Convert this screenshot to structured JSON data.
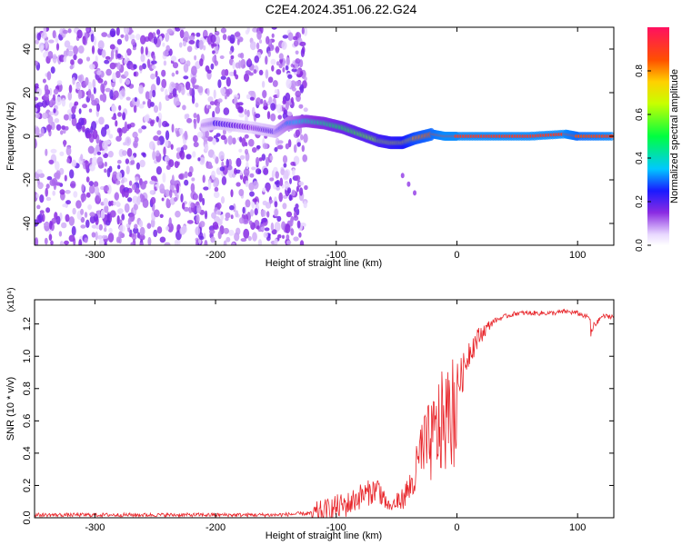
{
  "title": "C2E4.2024.351.06.22.G24",
  "chart_data": [
    {
      "type": "heatmap",
      "xlabel": "Height of straight line (km)",
      "ylabel": "Frequency (Hz)",
      "xlim": [
        -350,
        130
      ],
      "ylim": [
        -50,
        50
      ],
      "x_ticks": [
        -300,
        -200,
        -100,
        0,
        100
      ],
      "y_ticks": [
        -40,
        -20,
        0,
        20,
        40
      ],
      "colorbar": {
        "label": "Normalized spectral amplitude",
        "range": [
          0,
          1
        ],
        "ticks": [
          0.0,
          0.2,
          0.4,
          0.6,
          0.8
        ]
      },
      "noise_region_x": [
        -350,
        -125
      ],
      "signal_ridge": {
        "x": [
          -210,
          -200,
          -170,
          -150,
          -140,
          -125,
          -110,
          -95,
          -80,
          -65,
          -55,
          -45,
          -35,
          -20,
          -10,
          0,
          30,
          60,
          90,
          100,
          130
        ],
        "y": [
          5,
          6,
          4,
          2,
          6,
          7,
          6,
          4,
          1,
          -2,
          -3,
          -3,
          -1,
          1,
          0,
          0,
          0,
          0,
          1,
          0,
          0
        ],
        "amplitude": [
          0.15,
          0.2,
          0.15,
          0.2,
          0.3,
          0.4,
          0.45,
          0.5,
          0.55,
          0.6,
          0.65,
          0.7,
          0.8,
          0.85,
          0.9,
          0.9,
          0.9,
          0.9,
          0.9,
          0.85,
          0.9
        ]
      }
    },
    {
      "type": "line",
      "xlabel": "Height of straight line (km)",
      "ylabel": "SNR (10 * v/v)",
      "y_scale_label": "(x10⁴)",
      "xlim": [
        -350,
        130
      ],
      "ylim": [
        0,
        1.35
      ],
      "x_ticks": [
        -300,
        -200,
        -100,
        0,
        100
      ],
      "y_ticks": [
        0.0,
        0.2,
        0.4,
        0.6,
        0.8,
        1.0,
        1.2
      ],
      "series": [
        {
          "color": "#e8262b",
          "x": [
            -350,
            -300,
            -250,
            -200,
            -150,
            -120,
            -110,
            -100,
            -90,
            -80,
            -70,
            -65,
            -60,
            -55,
            -50,
            -45,
            -40,
            -35,
            -30,
            -25,
            -20,
            -15,
            -10,
            -5,
            0,
            5,
            10,
            20,
            30,
            40,
            50,
            60,
            70,
            80,
            90,
            100,
            110,
            115,
            120,
            130
          ],
          "values": [
            0.02,
            0.02,
            0.02,
            0.02,
            0.02,
            0.03,
            0.05,
            0.08,
            0.1,
            0.15,
            0.18,
            0.2,
            0.13,
            0.08,
            0.12,
            0.15,
            0.22,
            0.3,
            0.5,
            0.55,
            0.6,
            0.7,
            0.75,
            0.8,
            0.85,
            0.92,
            1.05,
            1.15,
            1.22,
            1.25,
            1.27,
            1.27,
            1.27,
            1.27,
            1.28,
            1.27,
            1.24,
            1.2,
            1.25,
            1.25
          ]
        }
      ]
    }
  ]
}
